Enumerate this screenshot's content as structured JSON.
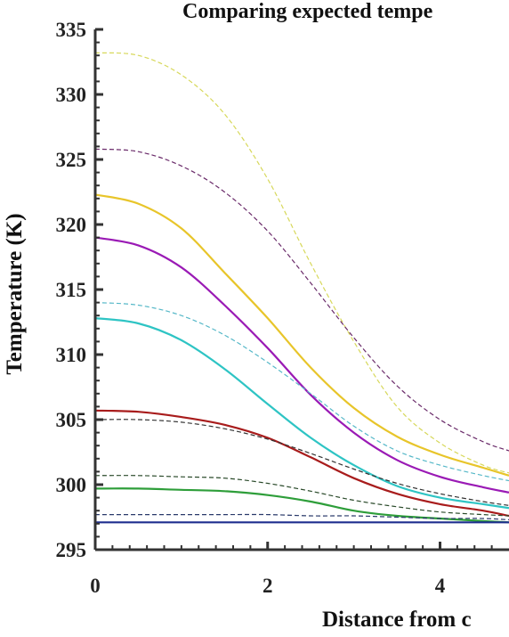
{
  "chart_data": {
    "type": "line",
    "title": "Comparing expected tempe",
    "xlabel": "Distance from c",
    "ylabel": "Temperature (K)",
    "xlim": [
      0,
      4.8
    ],
    "ylim": [
      295,
      335
    ],
    "x_ticks": [
      0,
      2,
      4
    ],
    "x_tick_labels": [
      "0",
      "2",
      "4"
    ],
    "y_ticks": [
      295,
      300,
      305,
      310,
      315,
      320,
      325,
      330,
      335
    ],
    "y_tick_labels": [
      "295",
      "300",
      "305",
      "310",
      "315",
      "320",
      "325",
      "330",
      "335"
    ],
    "grid": false,
    "x": [
      0,
      0.5,
      1,
      1.5,
      2,
      2.5,
      3,
      3.5,
      4,
      4.5,
      4.8
    ],
    "series": [
      {
        "color": "#e8c52a",
        "style": "solid",
        "values": [
          322.3,
          321.6,
          319.7,
          316.3,
          312.8,
          309.0,
          305.9,
          303.7,
          302.3,
          301.3,
          300.7
        ]
      },
      {
        "color": "#9a1ab5",
        "style": "solid",
        "values": [
          319.0,
          318.4,
          316.7,
          313.8,
          310.5,
          306.9,
          304.0,
          301.9,
          300.6,
          299.8,
          299.4
        ]
      },
      {
        "color": "#2ec4c4",
        "style": "solid",
        "values": [
          312.8,
          312.4,
          311.1,
          308.9,
          306.2,
          303.6,
          301.5,
          299.9,
          299.0,
          298.5,
          298.2
        ]
      },
      {
        "color": "#a81c1c",
        "style": "solid",
        "values": [
          305.7,
          305.6,
          305.2,
          304.6,
          303.6,
          302.1,
          300.5,
          299.3,
          298.5,
          298.0,
          297.6
        ]
      },
      {
        "color": "#2e9e3a",
        "style": "solid",
        "values": [
          299.7,
          299.7,
          299.6,
          299.5,
          299.2,
          298.7,
          298.0,
          297.6,
          297.4,
          297.2,
          297.1
        ]
      },
      {
        "color": "#1f2f8f",
        "style": "solid",
        "values": [
          297.1,
          297.1,
          297.1,
          297.1,
          297.1,
          297.1,
          297.1,
          297.1,
          297.1,
          297.1,
          297.1
        ]
      },
      {
        "color": "#d7d85a",
        "style": "dashed",
        "values": [
          333.2,
          333.0,
          331.5,
          328.5,
          323.5,
          317.0,
          311.0,
          306.0,
          303.2,
          301.5,
          300.9
        ]
      },
      {
        "color": "#6a2b6a",
        "style": "dashed",
        "values": [
          325.8,
          325.6,
          324.5,
          322.5,
          319.5,
          315.5,
          311.3,
          307.6,
          305.0,
          303.3,
          302.6
        ]
      },
      {
        "color": "#56b8c8",
        "style": "dashed",
        "values": [
          314.0,
          313.8,
          313.0,
          311.5,
          309.4,
          307.0,
          304.5,
          302.6,
          301.5,
          300.7,
          300.3
        ]
      },
      {
        "color": "#333333",
        "style": "dashed",
        "values": [
          305.0,
          305.0,
          304.8,
          304.3,
          303.5,
          302.4,
          301.2,
          300.1,
          299.3,
          298.7,
          298.4
        ]
      },
      {
        "color": "#2a4a2a",
        "style": "dashed",
        "values": [
          300.7,
          300.7,
          300.6,
          300.5,
          300.1,
          299.5,
          298.8,
          298.3,
          297.9,
          297.7,
          297.6
        ]
      },
      {
        "color": "#2a3a6a",
        "style": "dashed",
        "values": [
          297.7,
          297.7,
          297.7,
          297.7,
          297.7,
          297.6,
          297.6,
          297.5,
          297.4,
          297.4,
          297.3
        ]
      }
    ]
  }
}
